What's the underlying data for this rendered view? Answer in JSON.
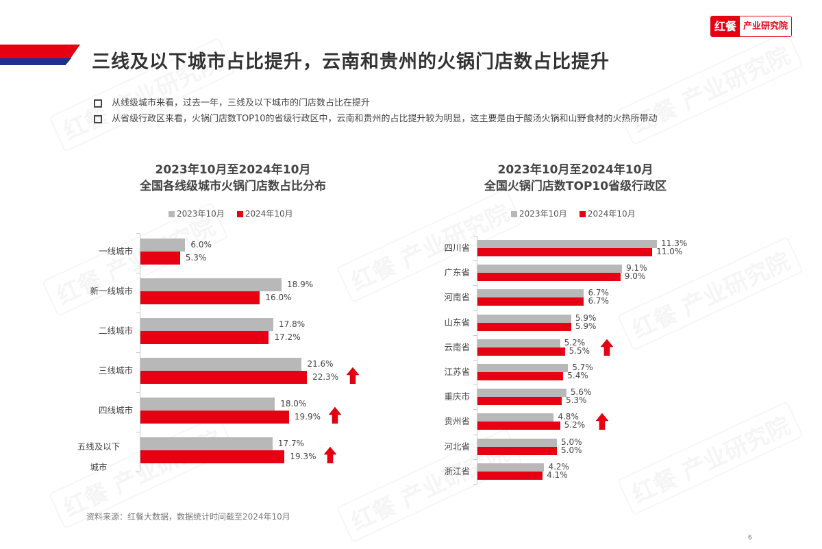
{
  "header": {
    "title": "三线及以下城市占比提升，云南和贵州的火锅门店数占比提升",
    "logo_left": "红餐",
    "logo_right": "产业研究院",
    "accent_red": "#e60012",
    "accent_blue": "#1d2f8f"
  },
  "bullets": [
    "从线级城市来看，过去一年，三线及以下城市的门店数占比在提升",
    "从省级行政区来看，火锅门店数TOP10的省级行政区中，云南和贵州的占比提升较为明显，这主要是由于酸汤火锅和山野食材的火热所带动"
  ],
  "watermark": "红餐 产业研究院",
  "source": "资料来源：红餐大数据，数据统计时间截至2024年10月",
  "page_number": "6",
  "chart_data": [
    {
      "type": "bar",
      "orientation": "horizontal",
      "title_line1": "2023年10月至2024年10月",
      "title_line2": "全国各线级城市火锅门店数占比分布",
      "categories": [
        "一线城市",
        "新一线城市",
        "二线城市",
        "三线城市",
        "四线城市",
        "五线及以下城市"
      ],
      "category_lines": [
        [
          "一线城市"
        ],
        [
          "新一线城市"
        ],
        [
          "二线城市"
        ],
        [
          "三线城市"
        ],
        [
          "四线城市"
        ],
        [
          "五线及以下",
          "城市"
        ]
      ],
      "series": [
        {
          "name": "2023年10月",
          "color": "#b8b8b8",
          "values": [
            6.0,
            18.9,
            17.8,
            21.6,
            18.0,
            17.7
          ],
          "labels": [
            "6.0%",
            "18.9%",
            "17.8%",
            "21.6%",
            "18.0%",
            "17.7%"
          ]
        },
        {
          "name": "2024年10月",
          "color": "#e60012",
          "values": [
            5.3,
            16.0,
            17.2,
            22.3,
            19.9,
            19.3
          ],
          "labels": [
            "5.3%",
            "16.0%",
            "17.2%",
            "22.3%",
            "19.9%",
            "19.3%"
          ]
        }
      ],
      "annotations": [
        {
          "category": "三线城市",
          "icon": "up-arrow"
        },
        {
          "category": "四线城市",
          "icon": "up-arrow"
        },
        {
          "category": "五线及以下城市",
          "icon": "up-arrow"
        }
      ],
      "legend_position": "top",
      "grid": false,
      "xlabel": "",
      "ylabel": ""
    },
    {
      "type": "bar",
      "orientation": "horizontal",
      "title_line1": "2023年10月至2024年10月",
      "title_line2": "全国火锅门店数TOP10省级行政区",
      "categories": [
        "四川省",
        "广东省",
        "河南省",
        "山东省",
        "云南省",
        "江苏省",
        "重庆市",
        "贵州省",
        "河北省",
        "浙江省"
      ],
      "series": [
        {
          "name": "2023年10月",
          "color": "#b8b8b8",
          "values": [
            11.3,
            9.1,
            6.7,
            5.9,
            5.2,
            5.7,
            5.6,
            4.8,
            5.0,
            4.2
          ],
          "labels": [
            "11.3%",
            "9.1%",
            "6.7%",
            "5.9%",
            "5.2%",
            "5.7%",
            "5.6%",
            "4.8%",
            "5.0%",
            "4.2%"
          ]
        },
        {
          "name": "2024年10月",
          "color": "#e60012",
          "values": [
            11.0,
            9.0,
            6.7,
            5.9,
            5.5,
            5.4,
            5.3,
            5.2,
            5.0,
            4.1
          ],
          "labels": [
            "11.0%",
            "9.0%",
            "6.7%",
            "5.9%",
            "5.5%",
            "5.4%",
            "5.3%",
            "5.2%",
            "5.0%",
            "4.1%"
          ]
        }
      ],
      "annotations": [
        {
          "category": "云南省",
          "icon": "up-arrow"
        },
        {
          "category": "贵州省",
          "icon": "up-arrow"
        }
      ],
      "legend_position": "top",
      "grid": false,
      "xlabel": "",
      "ylabel": ""
    }
  ]
}
